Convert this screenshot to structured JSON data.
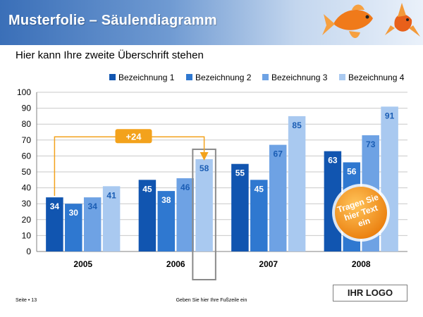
{
  "slide": {
    "title": "Musterfolie – Säulendiagramm",
    "subtitle": "Hier kann Ihre zweite Überschrift stehen",
    "footer_page": "Seite • 13",
    "footer_text": "Geben Sie hier Ihre Fußzeile ein",
    "logo": "IHR LOGO"
  },
  "callouts": {
    "difference_label": "+24",
    "badge_text": [
      "Tragen Sie",
      "hier Text",
      "ein"
    ]
  },
  "colors": {
    "series": [
      "#1155b0",
      "#2f78d0",
      "#6ea2e4",
      "#a9c9f0"
    ],
    "arrow": "#f3a21c",
    "badge": "#f49a1a",
    "highlight_box": "#8a8a8a"
  },
  "chart_data": {
    "type": "bar",
    "categories": [
      "2005",
      "2006",
      "2007",
      "2008"
    ],
    "series": [
      {
        "name": "Bezeichnung 1",
        "values": [
          34,
          45,
          55,
          63
        ]
      },
      {
        "name": "Bezeichnung 2",
        "values": [
          30,
          38,
          45,
          56
        ]
      },
      {
        "name": "Bezeichnung 3",
        "values": [
          34,
          46,
          67,
          73
        ]
      },
      {
        "name": "Bezeichnung 4",
        "values": [
          41,
          58,
          85,
          91
        ]
      }
    ],
    "ylim": [
      0,
      100
    ],
    "ytick_step": 10,
    "grid": true,
    "legend_position": "top-right",
    "highlight": {
      "category": "2006",
      "series": "Bezeichnung 4"
    }
  }
}
